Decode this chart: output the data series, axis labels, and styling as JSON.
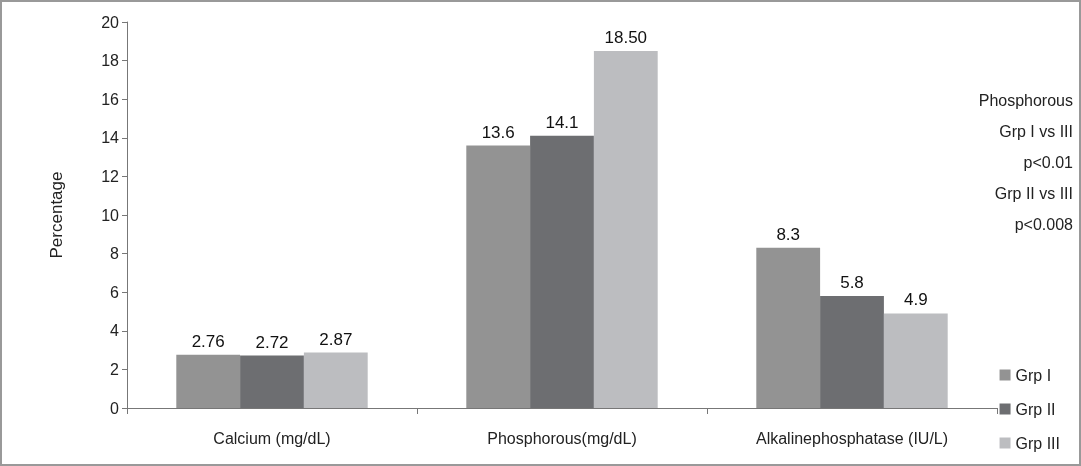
{
  "chart_data": {
    "type": "bar",
    "ylabel": "Percentage",
    "categories": [
      "Calcium (mg/dL)",
      "Phosphorous(mg/dL)",
      "Alkalinephosphatase (IU/L)"
    ],
    "series": [
      {
        "name": "Grp I",
        "color": "#939393",
        "values": [
          2.76,
          13.6,
          8.3
        ],
        "value_labels": [
          "2.76",
          "13.6",
          "8.3"
        ]
      },
      {
        "name": "Grp II",
        "color": "#6d6e71",
        "values": [
          2.72,
          14.1,
          5.8
        ],
        "value_labels": [
          "2.72",
          "14.1",
          "5.8"
        ]
      },
      {
        "name": "Grp III",
        "color": "#bcbdc0",
        "values": [
          2.87,
          18.5,
          4.9
        ],
        "value_labels": [
          "2.87",
          "18.50",
          "4.9"
        ]
      }
    ],
    "ylim": [
      0,
      20
    ],
    "yticks": [
      0,
      2,
      4,
      6,
      8,
      10,
      12,
      14,
      16,
      18,
      20
    ],
    "grid": false,
    "legend": "bottom right",
    "annotations": [
      "Phosphorous",
      "Grp I vs III",
      "p<0.01",
      "Grp II vs III",
      "p<0.008"
    ]
  }
}
